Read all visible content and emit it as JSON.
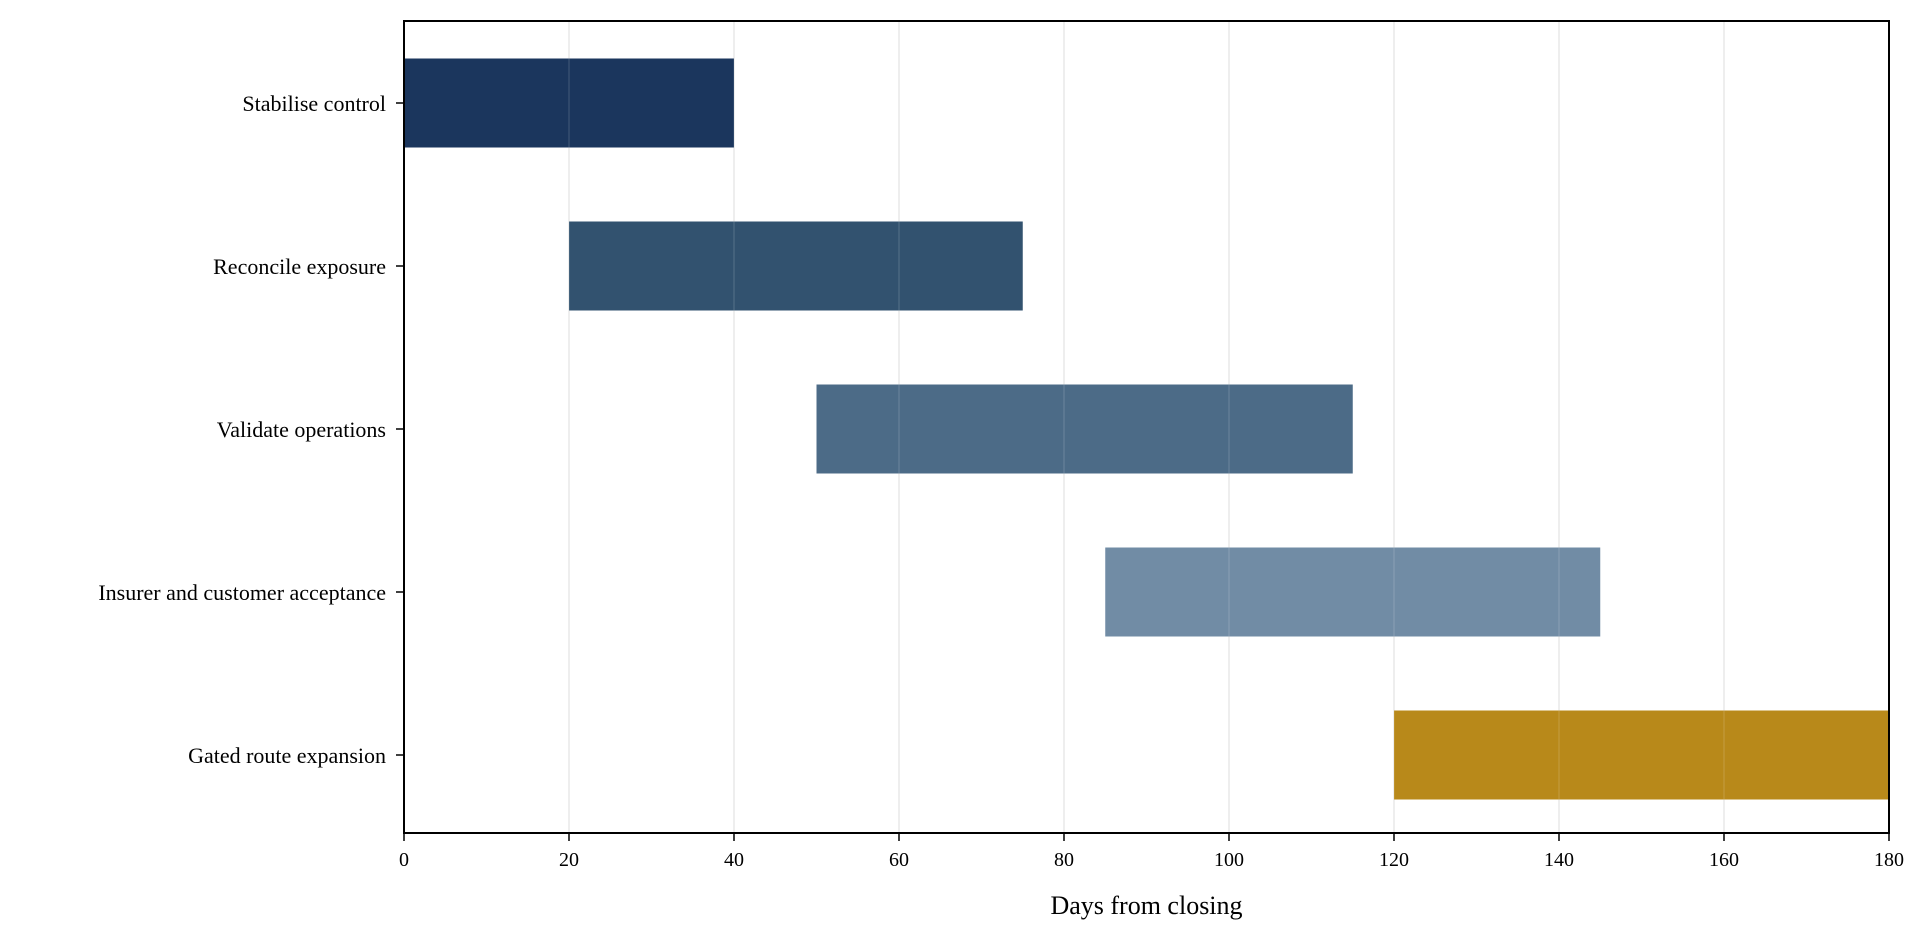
{
  "chart_data": {
    "type": "gantt",
    "xlabel": "Days from closing",
    "ylabel": "",
    "title": "",
    "xlim": [
      0,
      180
    ],
    "xticks": [
      0,
      20,
      40,
      60,
      80,
      100,
      120,
      140,
      160,
      180
    ],
    "grid": "vertical",
    "tasks": [
      {
        "label": "Stabilise control",
        "start": 0,
        "end": 40,
        "color": "#1b365d"
      },
      {
        "label": "Reconcile exposure",
        "start": 20,
        "end": 75,
        "color": "#32526f"
      },
      {
        "label": "Validate operations",
        "start": 50,
        "end": 115,
        "color": "#4c6b87"
      },
      {
        "label": "Insurer and customer acceptance",
        "start": 85,
        "end": 145,
        "color": "#718ca5"
      },
      {
        "label": "Gated route expansion",
        "start": 120,
        "end": 180,
        "color": "#b8891a"
      }
    ]
  }
}
